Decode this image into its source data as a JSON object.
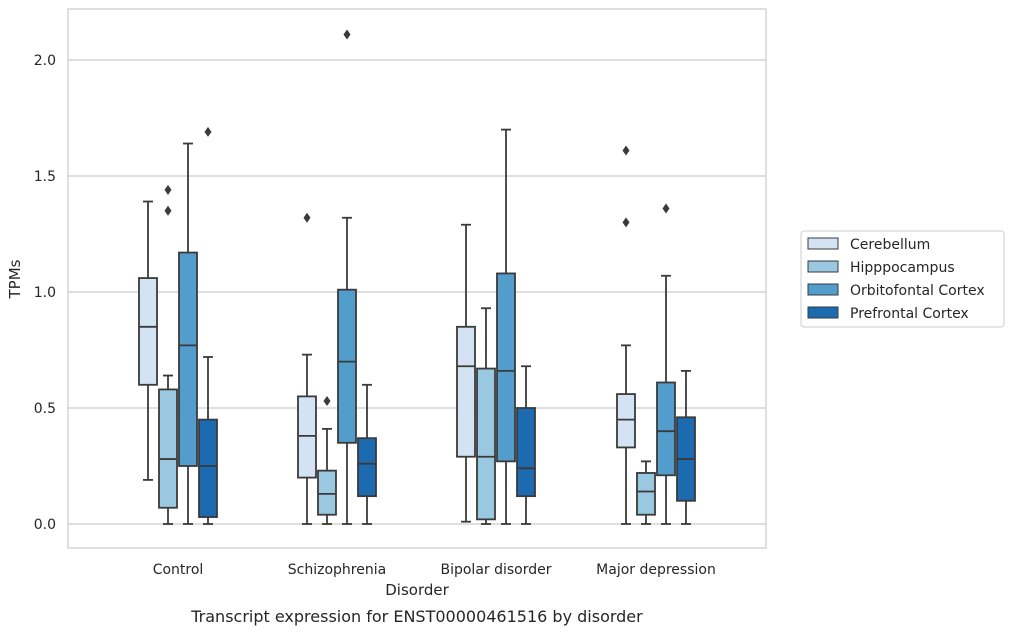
{
  "caption": "Transcript expression for ENST00000461516 by disorder",
  "chart_data": {
    "type": "box",
    "xlabel": "Disorder",
    "ylabel": "TPMs",
    "ylim": [
      -0.1,
      2.22
    ],
    "yticks": [
      "0.0",
      "0.5",
      "1.0",
      "1.5",
      "2.0"
    ],
    "grid": "horizontal",
    "legend_position": "right",
    "categories": [
      "Control",
      "Schizophrenia",
      "Bipolar disorder",
      "Major depression"
    ],
    "series": [
      {
        "name": "Cerebellum",
        "color": "#d3e3f3",
        "boxes": [
          {
            "whisker_low": 0.19,
            "q1": 0.6,
            "median": 0.85,
            "q3": 1.06,
            "whisker_high": 1.39,
            "outliers": []
          },
          {
            "whisker_low": 0.0,
            "q1": 0.2,
            "median": 0.38,
            "q3": 0.55,
            "whisker_high": 0.73,
            "outliers": [
              1.32
            ]
          },
          {
            "whisker_low": 0.01,
            "q1": 0.29,
            "median": 0.68,
            "q3": 0.85,
            "whisker_high": 1.29,
            "outliers": []
          },
          {
            "whisker_low": 0.0,
            "q1": 0.33,
            "median": 0.45,
            "q3": 0.56,
            "whisker_high": 0.77,
            "outliers": [
              1.3,
              1.61
            ]
          }
        ]
      },
      {
        "name": "Hipppocampus",
        "color": "#9ac8e0",
        "boxes": [
          {
            "whisker_low": 0.0,
            "q1": 0.07,
            "median": 0.28,
            "q3": 0.58,
            "whisker_high": 0.64,
            "outliers": [
              1.35,
              1.44
            ]
          },
          {
            "whisker_low": 0.0,
            "q1": 0.04,
            "median": 0.13,
            "q3": 0.23,
            "whisker_high": 0.41,
            "outliers": [
              0.53
            ]
          },
          {
            "whisker_low": 0.0,
            "q1": 0.02,
            "median": 0.29,
            "q3": 0.67,
            "whisker_high": 0.93,
            "outliers": []
          },
          {
            "whisker_low": 0.0,
            "q1": 0.04,
            "median": 0.14,
            "q3": 0.22,
            "whisker_high": 0.27,
            "outliers": []
          }
        ]
      },
      {
        "name": "Orbitofontal Cortex",
        "color": "#529dcc",
        "boxes": [
          {
            "whisker_low": 0.0,
            "q1": 0.25,
            "median": 0.77,
            "q3": 1.17,
            "whisker_high": 1.64,
            "outliers": []
          },
          {
            "whisker_low": 0.0,
            "q1": 0.35,
            "median": 0.7,
            "q3": 1.01,
            "whisker_high": 1.32,
            "outliers": [
              2.11
            ]
          },
          {
            "whisker_low": 0.0,
            "q1": 0.27,
            "median": 0.66,
            "q3": 1.08,
            "whisker_high": 1.7,
            "outliers": []
          },
          {
            "whisker_low": 0.0,
            "q1": 0.21,
            "median": 0.4,
            "q3": 0.61,
            "whisker_high": 1.07,
            "outliers": [
              1.36
            ]
          }
        ]
      },
      {
        "name": "Prefrontal Cortex",
        "color": "#1c6aaf",
        "boxes": [
          {
            "whisker_low": 0.0,
            "q1": 0.03,
            "median": 0.25,
            "q3": 0.45,
            "whisker_high": 0.72,
            "outliers": [
              1.69
            ]
          },
          {
            "whisker_low": 0.0,
            "q1": 0.12,
            "median": 0.26,
            "q3": 0.37,
            "whisker_high": 0.6,
            "outliers": []
          },
          {
            "whisker_low": 0.0,
            "q1": 0.12,
            "median": 0.24,
            "q3": 0.5,
            "whisker_high": 0.68,
            "outliers": []
          },
          {
            "whisker_low": 0.0,
            "q1": 0.1,
            "median": 0.28,
            "q3": 0.46,
            "whisker_high": 0.66,
            "outliers": []
          }
        ]
      }
    ]
  }
}
